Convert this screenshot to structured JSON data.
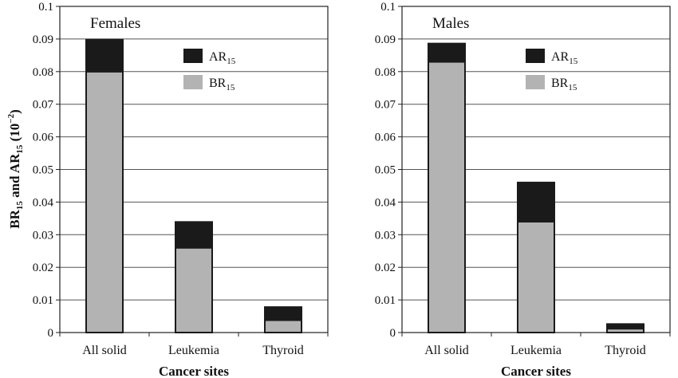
{
  "chart_data": [
    {
      "type": "bar",
      "stacked": true,
      "title": "Females",
      "categories": [
        "All solid",
        "Leukemia",
        "Thyroid"
      ],
      "series": [
        {
          "name": "BR15",
          "name_main": "BR",
          "name_sub": "15",
          "color": "#b3b3b3",
          "values": [
            0.08,
            0.026,
            0.0038
          ]
        },
        {
          "name": "AR15",
          "name_main": "AR",
          "name_sub": "15",
          "color": "#1a1a1a",
          "values": [
            0.0098,
            0.0079,
            0.004
          ]
        }
      ],
      "xlabel": "Cancer sites",
      "ylabel": {
        "p1": "BR",
        "p1sub": "15",
        "p2": " and AR",
        "p2sub": "15",
        "p3": " (10",
        "p3sup": "−2",
        "p4": ")"
      },
      "ylim": [
        0,
        0.1
      ],
      "yticks": [
        "0",
        "0.01",
        "0.02",
        "0.03",
        "0.04",
        "0.05",
        "0.06",
        "0.07",
        "0.08",
        "0.09",
        "0.1"
      ],
      "grid": true,
      "legend": "top-right"
    },
    {
      "type": "bar",
      "stacked": true,
      "title": "Males",
      "categories": [
        "All solid",
        "Leukemia",
        "Thyroid"
      ],
      "series": [
        {
          "name": "BR15",
          "name_main": "BR",
          "name_sub": "15",
          "color": "#b3b3b3",
          "values": [
            0.083,
            0.034,
            0.0012
          ]
        },
        {
          "name": "AR15",
          "name_main": "AR",
          "name_sub": "15",
          "color": "#1a1a1a",
          "values": [
            0.0056,
            0.012,
            0.0014
          ]
        }
      ],
      "xlabel": "Cancer sites",
      "ylim": [
        0,
        0.1
      ],
      "yticks": [
        "0",
        "0.01",
        "0.02",
        "0.03",
        "0.04",
        "0.05",
        "0.06",
        "0.07",
        "0.08",
        "0.09",
        "0.1"
      ],
      "grid": true,
      "legend": "top-right"
    }
  ]
}
